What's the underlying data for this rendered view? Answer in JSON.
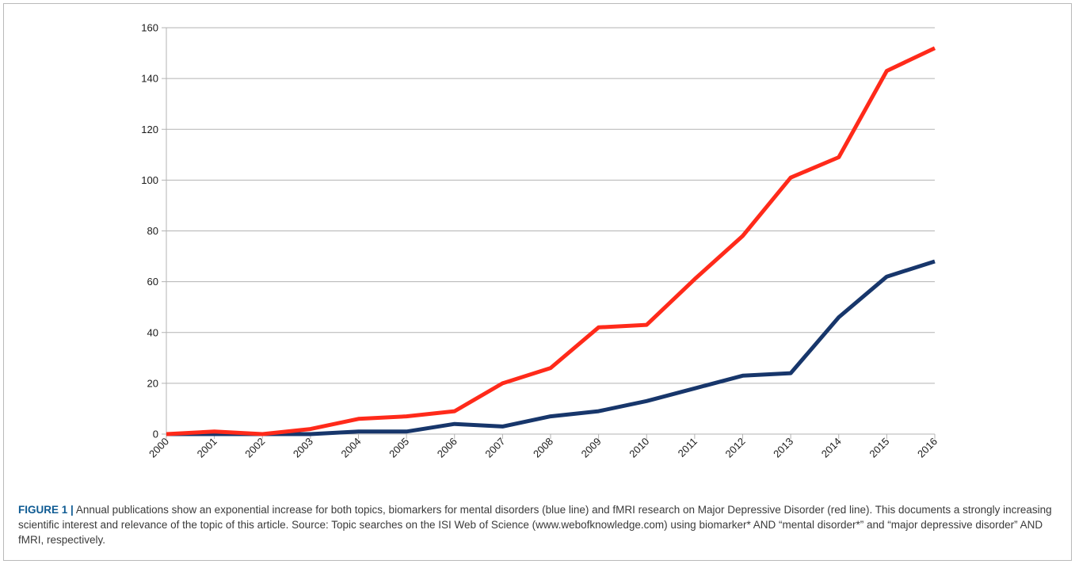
{
  "chart_data": {
    "type": "line",
    "x": [
      "2000",
      "2001",
      "2002",
      "2003",
      "2004",
      "2005",
      "2006",
      "2007",
      "2008",
      "2009",
      "2010",
      "2011",
      "2012",
      "2013",
      "2014",
      "2015",
      "2016"
    ],
    "series": [
      {
        "color": "#17366b",
        "values": [
          0,
          0,
          0,
          0,
          1,
          1,
          4,
          3,
          7,
          9,
          13,
          18,
          23,
          24,
          46,
          62,
          68
        ]
      },
      {
        "color": "#ff2a1a",
        "values": [
          0,
          1,
          0,
          2,
          6,
          7,
          9,
          20,
          26,
          42,
          43,
          61,
          78,
          101,
          109,
          143,
          152
        ]
      }
    ],
    "ylim": [
      0,
      160
    ],
    "yticks": [
      0,
      20,
      40,
      60,
      80,
      100,
      120,
      140,
      160
    ],
    "grid": true,
    "title": "",
    "xlabel": "",
    "ylabel": ""
  },
  "caption": {
    "label": "FIGURE 1 |",
    "text": "Annual publications show an exponential increase for both topics, biomarkers for mental disorders (blue line) and fMRI research on Major Depressive Disorder (red line). This documents a strongly increasing scientific interest and relevance of the topic of this article. Source: Topic searches on the ISI Web of Science (www.webofknowledge.com) using biomarker* AND “mental disorder*” and “major depressive disorder” AND fMRI, respectively."
  }
}
